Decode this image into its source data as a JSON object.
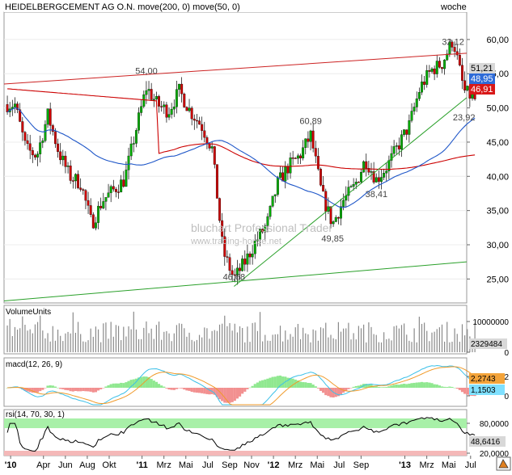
{
  "main_panel": {
    "title": "HEIDELBERGCEMENT AG O.N. move(200, 0) move(50, 0)",
    "period_label": "woche",
    "y_ticks": [
      "60,00",
      "55,00",
      "50,00",
      "45,00",
      "40,00",
      "35,00",
      "30,00",
      "25,00"
    ],
    "badges": {
      "last_price": "51,21",
      "ma50": "48,95",
      "ma200": "46,91"
    },
    "annotations": [
      "54,00",
      "46,68",
      "60,89",
      "49,85",
      "38,41",
      "32,12",
      "23,92"
    ],
    "watermark_title": "bluchart Professional Trader",
    "watermark_url": "www.trading-house.net",
    "colors": {
      "up_candle": "#00aa00",
      "down_candle": "#cc0000",
      "ma200": "#cc0000",
      "ma50": "#1e56c8",
      "trendline": "#2aa02a",
      "badge_price": "#d8d8d8",
      "badge_ma50": "#2e6bd8",
      "badge_ma200": "#d81818"
    }
  },
  "volume_panel": {
    "title": "VolumeUnits",
    "y_ticks": [
      "10000000",
      "0"
    ],
    "last_value": "2329484"
  },
  "macd_panel": {
    "title": "macd(12, 26, 9)",
    "y_ticks": [
      "2",
      "0"
    ],
    "badges": {
      "macd": "2,2743",
      "signal": "1,1503"
    }
  },
  "rsi_panel": {
    "title": "rsi(14, 70, 30, 1)",
    "y_ticks": [
      "80,0000",
      "20,0000"
    ],
    "last_value": "48,6416"
  },
  "x_axis": {
    "labels": [
      "'10",
      "Apr",
      "Jun",
      "Aug",
      "Okt",
      "'11",
      "Mrz",
      "Mai",
      "Jul",
      "Sep",
      "Nov",
      "'12",
      "Mrz",
      "Mai",
      "Jul",
      "Sep",
      "'13",
      "Mrz",
      "Mai",
      "Jul"
    ]
  },
  "chart_data": {
    "type": "candlestick",
    "title": "HEIDELBERGCEMENT AG O.N. move(200, 0) move(50, 0)",
    "period": "woche",
    "ylim": [
      21.5,
      64
    ],
    "key_points": [
      {
        "x": "2011-01",
        "y": 54.0
      },
      {
        "x": "2011-09",
        "y": 23.92
      },
      {
        "x": "2012-04",
        "y": 46.68
      },
      {
        "x": "2012-06",
        "y": 32.12
      },
      {
        "x": "2012-10",
        "y": 38.41
      },
      {
        "x": "2013-05",
        "y": 60.89
      },
      {
        "x": "2013-06",
        "y": 49.85
      }
    ],
    "series": [
      {
        "name": "move(200, 0)",
        "last": 46.91
      },
      {
        "name": "move(50, 0)",
        "last": 48.95
      }
    ],
    "close_path": [
      [
        "2010-01",
        50.5
      ],
      [
        "2010-02",
        44.0
      ],
      [
        "2010-03",
        43.0
      ],
      [
        "2010-04",
        49.0
      ],
      [
        "2010-05",
        43.5
      ],
      [
        "2010-06",
        40.0
      ],
      [
        "2010-07",
        39.0
      ],
      [
        "2010-08",
        33.0
      ],
      [
        "2010-09",
        36.5
      ],
      [
        "2010-10",
        38.0
      ],
      [
        "2010-11",
        39.5
      ],
      [
        "2010-12",
        46.5
      ],
      [
        "2011-01",
        53.0
      ],
      [
        "2011-02",
        50.5
      ],
      [
        "2011-03",
        49.5
      ],
      [
        "2011-04",
        52.5
      ],
      [
        "2011-05",
        49.5
      ],
      [
        "2011-06",
        47.5
      ],
      [
        "2011-07",
        44.0
      ],
      [
        "2011-08",
        29.0
      ],
      [
        "2011-09",
        25.0
      ],
      [
        "2011-10",
        27.5
      ],
      [
        "2011-11",
        30.5
      ],
      [
        "2011-12",
        33.0
      ],
      [
        "2012-01",
        39.0
      ],
      [
        "2012-02",
        41.5
      ],
      [
        "2012-03",
        43.0
      ],
      [
        "2012-04",
        46.0
      ],
      [
        "2012-05",
        37.5
      ],
      [
        "2012-06",
        33.0
      ],
      [
        "2012-07",
        36.5
      ],
      [
        "2012-08",
        38.5
      ],
      [
        "2012-09",
        42.5
      ],
      [
        "2012-10",
        39.5
      ],
      [
        "2012-11",
        41.5
      ],
      [
        "2012-12",
        44.5
      ],
      [
        "2013-01",
        47.5
      ],
      [
        "2013-02",
        53.0
      ],
      [
        "2013-03",
        55.5
      ],
      [
        "2013-04",
        56.5
      ],
      [
        "2013-05",
        60.0
      ],
      [
        "2013-06",
        52.5
      ],
      [
        "2013-07",
        51.21
      ]
    ],
    "volume": {
      "last": 2329484
    },
    "macd": {
      "macd": 2.2743,
      "signal": 1.1503
    },
    "rsi": {
      "last": 48.6416,
      "upper": 80,
      "lower": 20
    }
  }
}
